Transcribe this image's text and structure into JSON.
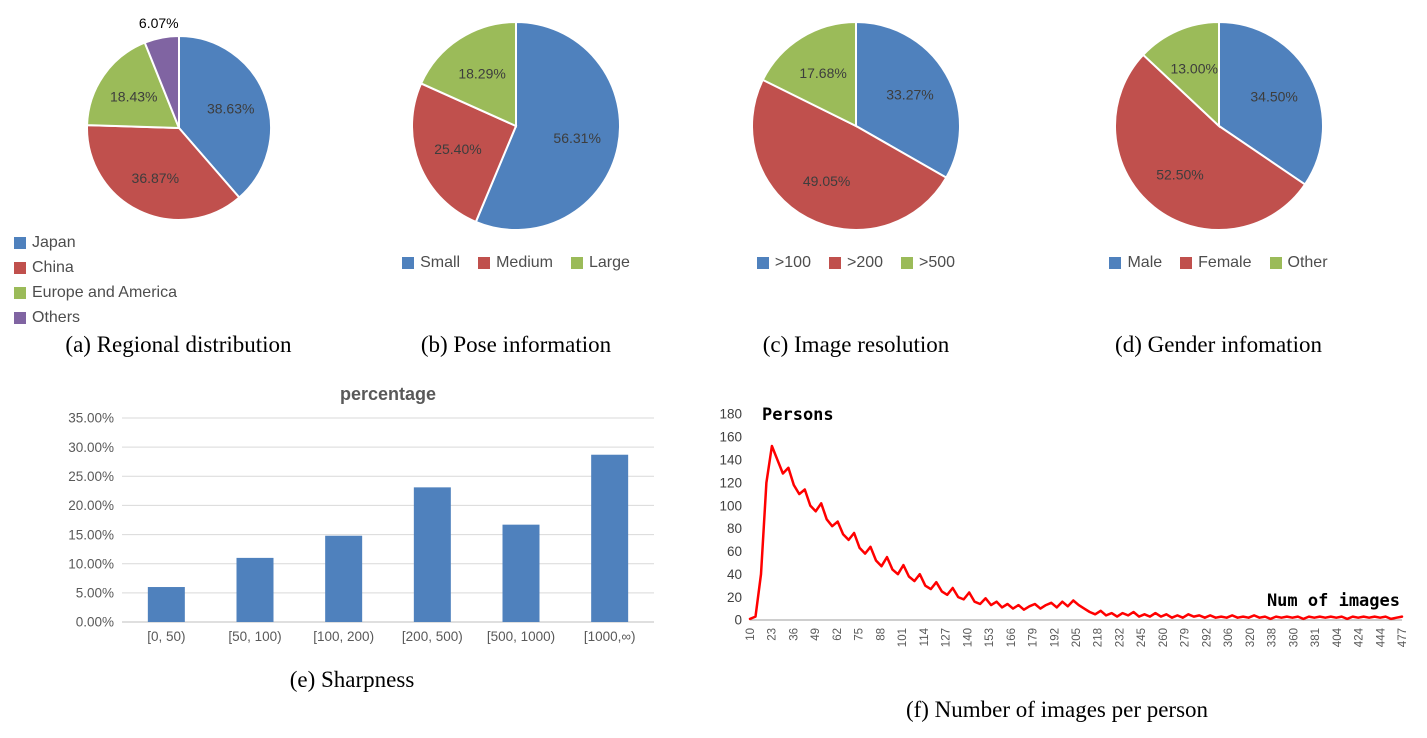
{
  "chart_data": [
    {
      "id": "regional-distribution",
      "type": "pie",
      "caption": "(a) Regional distribution",
      "legend": [
        "Japan",
        "China",
        "Europe and America",
        "Others"
      ],
      "legend_position": "bottom-left-vertical",
      "values": [
        38.63,
        36.87,
        18.43,
        6.07
      ],
      "labels": [
        "38.63%",
        "36.87%",
        "18.43%",
        "6.07%"
      ],
      "colors": [
        "#4F81BD",
        "#C0504D",
        "#9BBB59",
        "#8064A2"
      ]
    },
    {
      "id": "pose-information",
      "type": "pie",
      "caption": "(b) Pose information",
      "legend": [
        "Small",
        "Medium",
        "Large"
      ],
      "legend_position": "bottom-horizontal",
      "values": [
        56.31,
        25.4,
        18.29
      ],
      "labels": [
        "56.31%",
        "25.40%",
        "18.29%"
      ],
      "colors": [
        "#4F81BD",
        "#C0504D",
        "#9BBB59"
      ]
    },
    {
      "id": "image-resolution",
      "type": "pie",
      "caption": "(c) Image resolution",
      "legend": [
        ">100",
        ">200",
        ">500"
      ],
      "legend_position": "bottom-horizontal",
      "values": [
        33.27,
        49.05,
        17.68
      ],
      "labels": [
        "33.27%",
        "49.05%",
        "17.68%"
      ],
      "colors": [
        "#4F81BD",
        "#C0504D",
        "#9BBB59"
      ]
    },
    {
      "id": "gender-information",
      "type": "pie",
      "caption": "(d) Gender infomation",
      "legend": [
        "Male",
        "Female",
        "Other"
      ],
      "legend_position": "bottom-horizontal",
      "values": [
        34.5,
        52.5,
        13.0
      ],
      "labels": [
        "34.50%",
        "52.50%",
        "13.00%"
      ],
      "colors": [
        "#4F81BD",
        "#C0504D",
        "#9BBB59"
      ]
    },
    {
      "id": "sharpness",
      "type": "bar",
      "title": "percentage",
      "caption": "(e) Sharpness",
      "categories": [
        "[0, 50)",
        "[50, 100)",
        "[100, 200)",
        "[200, 500)",
        "[500, 1000)",
        "[1000,∞)"
      ],
      "values": [
        6.0,
        11.0,
        14.8,
        23.1,
        16.7,
        28.7
      ],
      "ylim": [
        0,
        35
      ],
      "ytick_step": 5,
      "ytick_format": "percent2",
      "bar_color": "#4F81BD",
      "grid": true,
      "title_color": "#595959"
    },
    {
      "id": "images-per-person",
      "type": "line",
      "caption": "(f) Number of images per person",
      "ylabel": "Persons",
      "xlabel": "Num of images",
      "ylim": [
        0,
        180
      ],
      "ytick_step": 20,
      "line_color": "#FF0000",
      "grid": false,
      "x_ticks": [
        "10",
        "23",
        "36",
        "49",
        "62",
        "75",
        "88",
        "101",
        "114",
        "127",
        "140",
        "153",
        "166",
        "179",
        "192",
        "205",
        "218",
        "232",
        "245",
        "260",
        "279",
        "292",
        "306",
        "320",
        "338",
        "360",
        "381",
        "404",
        "424",
        "444",
        "477"
      ],
      "y": [
        1,
        3,
        40,
        120,
        152,
        140,
        128,
        133,
        118,
        110,
        114,
        100,
        95,
        102,
        88,
        82,
        86,
        75,
        70,
        76,
        63,
        58,
        64,
        52,
        47,
        55,
        44,
        40,
        48,
        38,
        34,
        40,
        30,
        27,
        33,
        25,
        22,
        28,
        20,
        18,
        24,
        16,
        14,
        19,
        13,
        16,
        11,
        14,
        10,
        13,
        9,
        12,
        14,
        10,
        13,
        15,
        11,
        16,
        12,
        17,
        13,
        10,
        7,
        5,
        8,
        4,
        6,
        3,
        6,
        4,
        7,
        3,
        5,
        3,
        6,
        3,
        5,
        2,
        4,
        2,
        5,
        3,
        4,
        2,
        4,
        2,
        3,
        2,
        4,
        2,
        3,
        2,
        4,
        2,
        3,
        1,
        3,
        2,
        3,
        2,
        3,
        1,
        3,
        2,
        3,
        2,
        3,
        2,
        3,
        1,
        3,
        2,
        3,
        2,
        3,
        2,
        3,
        1,
        2,
        3
      ]
    }
  ]
}
